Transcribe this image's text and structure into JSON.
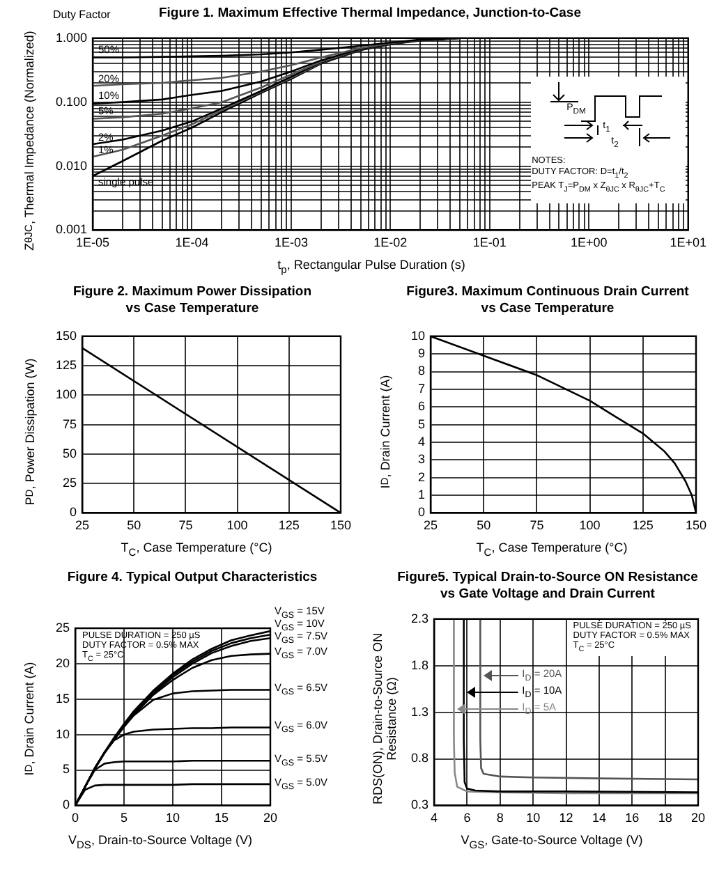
{
  "chart_data": [
    {
      "type": "line",
      "title": "Figure 1. Maximum Effective Thermal Impedance, Junction-to-Case",
      "xlabel": "t$_{p}$, Rectangular Pulse Duration (s)",
      "ylabel": "Z$_{θJC}$, Thermal Impedance (Normalized)",
      "annotations": [
        "Duty Factor",
        "P$_{DM}$",
        "t$_{1}$",
        "t$_{2}$",
        "NOTES:",
        "DUTY FACTOR: D=t$_{1}$/t$_{2}$",
        "PEAK T$_{J}$=P$_{DM}$ x Z$_{θJC}$ x R$_{θJC}$+T$_{C}$"
      ],
      "log": "xy",
      "grid": true,
      "legend": false,
      "x": [
        1e-05,
        2e-05,
        5e-05,
        0.0001,
        0.0002,
        0.0005,
        0.001,
        0.002,
        0.005,
        0.01,
        0.02,
        0.05,
        0.1,
        1,
        10
      ],
      "series": [
        {
          "name": "50%",
          "color": "#000000",
          "values": [
            0.5,
            0.5,
            0.51,
            0.52,
            0.53,
            0.56,
            0.6,
            0.66,
            0.76,
            0.85,
            0.95,
            1,
            1,
            1,
            1
          ]
        },
        {
          "name": "20%",
          "color": "#555555",
          "values": [
            0.18,
            0.19,
            0.2,
            0.22,
            0.24,
            0.3,
            0.38,
            0.5,
            0.7,
            0.83,
            0.94,
            1,
            1,
            1,
            1
          ]
        },
        {
          "name": "10%",
          "color": "#000000",
          "values": [
            0.095,
            0.1,
            0.11,
            0.13,
            0.15,
            0.21,
            0.3,
            0.45,
            0.68,
            0.82,
            0.93,
            1,
            1,
            1,
            1
          ]
        },
        {
          "name": "5%",
          "color": "#555555",
          "values": [
            0.055,
            0.058,
            0.066,
            0.08,
            0.1,
            0.17,
            0.27,
            0.43,
            0.67,
            0.82,
            0.93,
            1,
            1,
            1,
            1
          ]
        },
        {
          "name": "2%",
          "color": "#000000",
          "values": [
            0.022,
            0.026,
            0.036,
            0.05,
            0.08,
            0.15,
            0.25,
            0.42,
            0.66,
            0.81,
            0.93,
            1,
            1,
            1,
            1
          ]
        },
        {
          "name": "1%",
          "color": "#555555",
          "values": [
            0.014,
            0.018,
            0.03,
            0.045,
            0.075,
            0.145,
            0.24,
            0.41,
            0.66,
            0.81,
            0.93,
            1,
            1,
            1,
            1
          ]
        },
        {
          "name": "single pulse",
          "color": "#000000",
          "values": [
            0.007,
            0.012,
            0.025,
            0.04,
            0.07,
            0.14,
            0.23,
            0.4,
            0.65,
            0.8,
            0.92,
            1,
            1,
            1,
            1
          ]
        }
      ],
      "xlim": [
        1e-05,
        10
      ],
      "ylim": [
        0.001,
        1
      ],
      "xticks": [
        {
          "value": 1e-05,
          "label": "1E-05"
        },
        {
          "value": 2e-05,
          "label": null
        },
        {
          "value": 3e-05,
          "label": null
        },
        {
          "value": 4e-05,
          "label": null
        },
        {
          "value": 5e-05,
          "label": null
        },
        {
          "value": 6e-05,
          "label": null
        },
        {
          "value": 7e-05,
          "label": null
        },
        {
          "value": 8e-05,
          "label": null
        },
        {
          "value": 9e-05,
          "label": null
        },
        {
          "value": 0.0001,
          "label": "1E-04"
        },
        {
          "value": 0.0002,
          "label": null
        },
        {
          "value": 0.0003,
          "label": null
        },
        {
          "value": 0.0004,
          "label": null
        },
        {
          "value": 0.0005,
          "label": null
        },
        {
          "value": 0.0006,
          "label": null
        },
        {
          "value": 0.0007,
          "label": null
        },
        {
          "value": 0.0008,
          "label": null
        },
        {
          "value": 0.0009,
          "label": null
        },
        {
          "value": 0.001,
          "label": "1E-03"
        },
        {
          "value": 0.002,
          "label": null
        },
        {
          "value": 0.003,
          "label": null
        },
        {
          "value": 0.004,
          "label": null
        },
        {
          "value": 0.005,
          "label": null
        },
        {
          "value": 0.006,
          "label": null
        },
        {
          "value": 0.007,
          "label": null
        },
        {
          "value": 0.008,
          "label": null
        },
        {
          "value": 0.009,
          "label": null
        },
        {
          "value": 0.01,
          "label": "1E-02"
        },
        {
          "value": 0.02,
          "label": null
        },
        {
          "value": 0.03,
          "label": null
        },
        {
          "value": 0.04,
          "label": null
        },
        {
          "value": 0.05,
          "label": null
        },
        {
          "value": 0.06,
          "label": null
        },
        {
          "value": 0.07,
          "label": null
        },
        {
          "value": 0.08,
          "label": null
        },
        {
          "value": 0.09,
          "label": null
        },
        {
          "value": 0.1,
          "label": "1E-01"
        },
        {
          "value": 0.2,
          "label": null
        },
        {
          "value": 0.3,
          "label": null
        },
        {
          "value": 0.4,
          "label": null
        },
        {
          "value": 0.5,
          "label": null
        },
        {
          "value": 0.6,
          "label": null
        },
        {
          "value": 0.7,
          "label": null
        },
        {
          "value": 0.8,
          "label": null
        },
        {
          "value": 0.9,
          "label": null
        },
        {
          "value": 1,
          "label": "1E+00"
        },
        {
          "value": 2,
          "label": null
        },
        {
          "value": 3,
          "label": null
        },
        {
          "value": 4,
          "label": null
        },
        {
          "value": 5,
          "label": null
        },
        {
          "value": 6,
          "label": null
        },
        {
          "value": 7,
          "label": null
        },
        {
          "value": 8,
          "label": null
        },
        {
          "value": 9,
          "label": null
        },
        {
          "value": 10,
          "label": "1E+01"
        }
      ],
      "yticks": [
        {
          "value": 0.001,
          "label": "0.001"
        },
        {
          "value": 0.002,
          "label": null
        },
        {
          "value": 0.003,
          "label": null
        },
        {
          "value": 0.004,
          "label": null
        },
        {
          "value": 0.005,
          "label": null
        },
        {
          "value": 0.006,
          "label": null
        },
        {
          "value": 0.007,
          "label": null
        },
        {
          "value": 0.008,
          "label": null
        },
        {
          "value": 0.009,
          "label": null
        },
        {
          "value": 0.01,
          "label": "0.010"
        },
        {
          "value": 0.02,
          "label": null
        },
        {
          "value": 0.03,
          "label": null
        },
        {
          "value": 0.04,
          "label": null
        },
        {
          "value": 0.05,
          "label": null
        },
        {
          "value": 0.06,
          "label": null
        },
        {
          "value": 0.07,
          "label": null
        },
        {
          "value": 0.08,
          "label": null
        },
        {
          "value": 0.09,
          "label": null
        },
        {
          "value": 0.1,
          "label": "0.100"
        },
        {
          "value": 0.2,
          "label": null
        },
        {
          "value": 0.3,
          "label": null
        },
        {
          "value": 0.4,
          "label": null
        },
        {
          "value": 0.5,
          "label": null
        },
        {
          "value": 0.6,
          "label": null
        },
        {
          "value": 0.7,
          "label": null
        },
        {
          "value": 0.8,
          "label": null
        },
        {
          "value": 0.9,
          "label": null
        },
        {
          "value": 1,
          "label": "1.000"
        }
      ]
    },
    {
      "type": "line",
      "title": "Figure 2. Maximum Power Dissipation",
      "subtitle": "vs Case Temperature",
      "xlabel": "T$_{C}$, Case Temperature (°C)",
      "ylabel": "P$_{D}$, Power Dissipation (W)",
      "grid": true,
      "legend": false,
      "x": [
        25,
        150
      ],
      "series": [
        {
          "color": "#000000",
          "values": [
            140,
            0
          ]
        }
      ],
      "xlim": [
        25,
        150
      ],
      "xticks": [
        25,
        50,
        75,
        100,
        125,
        150
      ],
      "ylim": [
        0,
        150
      ],
      "yticks": [
        0,
        25,
        50,
        75,
        100,
        125,
        150
      ]
    },
    {
      "type": "line",
      "title": "Figure3. Maximum Continuous Drain Current",
      "subtitle": "vs Case Temperature",
      "xlabel": "T$_{C}$, Case Temperature (°C)",
      "ylabel": "I$_{D}$, Drain Current (A)",
      "grid": true,
      "legend": false,
      "x": [
        25,
        50,
        75,
        100,
        110,
        125,
        135,
        140,
        145,
        148,
        150
      ],
      "series": [
        {
          "color": "#000000",
          "values": [
            10,
            8.9,
            7.8,
            6.35,
            5.6,
            4.5,
            3.5,
            2.8,
            1.8,
            1,
            0
          ]
        }
      ],
      "xlim": [
        25,
        150
      ],
      "xticks": [
        25,
        50,
        75,
        100,
        125,
        150
      ],
      "ylim": [
        0,
        10
      ],
      "yticks": [
        0,
        1,
        2,
        3,
        4,
        5,
        6,
        7,
        8,
        9,
        10
      ]
    },
    {
      "type": "line",
      "title": "Figure 4. Typical Output Characteristics",
      "xlabel": "V$_{DS}$, Drain-to-Source Voltage (V)",
      "ylabel": "I$_{D}$, Drain Current (A)",
      "annotations": [
        "PULSE DURATION = 250 µS",
        "DUTY FACTOR = 0.5% MAX",
        "T$_{C}$ = 25°C"
      ],
      "grid": true,
      "legend": false,
      "x": [
        0,
        1,
        2,
        3,
        4,
        5,
        6,
        8,
        10,
        12,
        14,
        16,
        18,
        20
      ],
      "series": [
        {
          "name": "V$_{GS}$ = 15V",
          "color": "#000000",
          "values": [
            0,
            2.6,
            5.3,
            7.5,
            9.6,
            11.5,
            13.3,
            16.2,
            18.6,
            20.6,
            22.1,
            23.3,
            24,
            24.6
          ]
        },
        {
          "name": "V$_{GS}$ = 10V",
          "color": "#000000",
          "values": [
            0,
            2.6,
            5.2,
            7.5,
            9.5,
            11.3,
            13.1,
            16,
            18.4,
            20.3,
            21.8,
            22.9,
            23.6,
            24.1
          ]
        },
        {
          "name": "V$_{GS}$ = 7.5V",
          "color": "#000000",
          "values": [
            0,
            2.6,
            5.2,
            7.4,
            9.4,
            11.2,
            12.9,
            15.8,
            18.1,
            20,
            21.5,
            22.5,
            23.2,
            23.6
          ]
        },
        {
          "name": "V$_{GS}$ = 7.0V",
          "color": "#000000",
          "values": [
            0,
            2.6,
            5.2,
            7.4,
            9.3,
            11.1,
            12.8,
            15.6,
            17.7,
            19.4,
            20.5,
            21.1,
            21.3,
            21.4
          ]
        },
        {
          "name": "V$_{GS}$ = 6.5V",
          "color": "#000000",
          "values": [
            0,
            2.6,
            5.2,
            7.4,
            9.3,
            11.1,
            12.7,
            14.9,
            15.8,
            16.1,
            16.2,
            16.3,
            16.3,
            16.3
          ]
        },
        {
          "name": "V$_{GS}$ = 6.0V",
          "color": "#000000",
          "values": [
            0,
            2.6,
            5.2,
            7.5,
            9.2,
            10,
            10.4,
            10.7,
            10.8,
            10.9,
            10.9,
            11,
            11,
            11
          ]
        },
        {
          "name": "V$_{GS}$ = 5.5V",
          "color": "#000000",
          "values": [
            0,
            2.6,
            5,
            5.9,
            6.1,
            6.2,
            6.2,
            6.2,
            6.2,
            6.3,
            6.3,
            6.3,
            6.3,
            6.3
          ]
        },
        {
          "name": "V$_{GS}$ = 5.0V",
          "color": "#000000",
          "values": [
            0,
            2.2,
            2.8,
            2.9,
            2.9,
            2.9,
            2.9,
            2.9,
            2.9,
            3,
            3,
            3,
            3,
            3
          ]
        }
      ],
      "xlim": [
        0,
        20
      ],
      "xticks": [
        0,
        5,
        10,
        15,
        20
      ],
      "ylim": [
        0,
        25
      ],
      "yticks": [
        0,
        5,
        10,
        15,
        20,
        25
      ]
    },
    {
      "type": "line",
      "title": "Figure5. Typical Drain-to-Source ON Resistance",
      "subtitle": "vs Gate Voltage and Drain Current",
      "xlabel": "V$_{GS}$, Gate-to-Source Voltage (V)",
      "ylabel": "RDS(ON), Drain-to-Source ON Resistance (Ω)",
      "annotations": [
        "PULSE DURATION = 250 µS",
        "DUTY FACTOR = 0.5% MAX",
        "T$_{C}$ = 25°C"
      ],
      "grid": true,
      "legend": "left",
      "series": [
        {
          "name": "I$_{D}$ = 20A",
          "color": "#555555",
          "x": [
            6.8,
            6.8,
            6.85,
            7,
            8,
            10,
            14,
            20
          ],
          "values": [
            2.3,
            1,
            0.7,
            0.64,
            0.61,
            0.6,
            0.59,
            0.58
          ]
        },
        {
          "name": "I$_{D}$ = 10A",
          "color": "#000000",
          "x": [
            5.8,
            5.8,
            5.85,
            6,
            6.5,
            8,
            12,
            20
          ],
          "values": [
            2.3,
            1,
            0.55,
            0.48,
            0.46,
            0.45,
            0.45,
            0.44
          ]
        },
        {
          "name": "I$_{D}$ = 5A",
          "color": "#888888",
          "x": [
            5.2,
            5.2,
            5.25,
            5.4,
            6,
            8,
            12,
            20
          ],
          "values": [
            2.3,
            1,
            0.65,
            0.5,
            0.45,
            0.44,
            0.43,
            0.43
          ]
        }
      ],
      "xlim": [
        4,
        20
      ],
      "xticks": [
        4,
        6,
        8,
        10,
        12,
        14,
        16,
        18,
        20
      ],
      "ylim": [
        0.3,
        2.3
      ],
      "yticks": [
        0.3,
        0.8,
        1.3,
        1.8,
        2.3
      ]
    }
  ]
}
